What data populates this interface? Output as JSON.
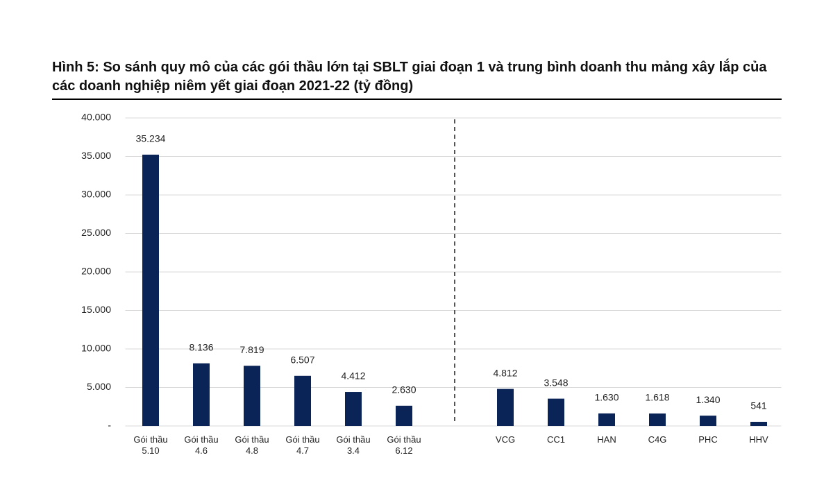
{
  "chart_data": {
    "type": "bar",
    "title": "Hình 5: So sánh quy mô của các gói thầu lớn tại SBLT giai đoạn 1 và trung bình doanh thu mảng xây lắp của các doanh nghiệp niêm yết giai đoạn 2021-22 (tỷ đồng)",
    "categories": [
      "Gói thầu 5.10",
      "Gói thầu 4.6",
      "Gói thầu 4.8",
      "Gói thầu 4.7",
      "Gói thầu 3.4",
      "Gói thầu 6.12",
      null,
      "VCG",
      "CC1",
      "HAN",
      "C4G",
      "PHC",
      "HHV"
    ],
    "values": [
      35234,
      8136,
      7819,
      6507,
      4412,
      2630,
      null,
      4812,
      3548,
      1630,
      1618,
      1340,
      541
    ],
    "value_labels": [
      "35.234",
      "8.136",
      "7.819",
      "6.507",
      "4.412",
      "2.630",
      null,
      "4.812",
      "3.548",
      "1.630",
      "1.618",
      "1.340",
      "541"
    ],
    "color": "#0b2458",
    "ylim": [
      0,
      40000
    ],
    "yticks": [
      {
        "value": 0,
        "label": "-"
      },
      {
        "value": 5000,
        "label": "5.000"
      },
      {
        "value": 10000,
        "label": "10.000"
      },
      {
        "value": 15000,
        "label": "15.000"
      },
      {
        "value": 20000,
        "label": "20.000"
      },
      {
        "value": 25000,
        "label": "25.000"
      },
      {
        "value": 30000,
        "label": "30.000"
      },
      {
        "value": 35000,
        "label": "35.000"
      },
      {
        "value": 40000,
        "label": "40.000"
      }
    ],
    "grid": true
  }
}
